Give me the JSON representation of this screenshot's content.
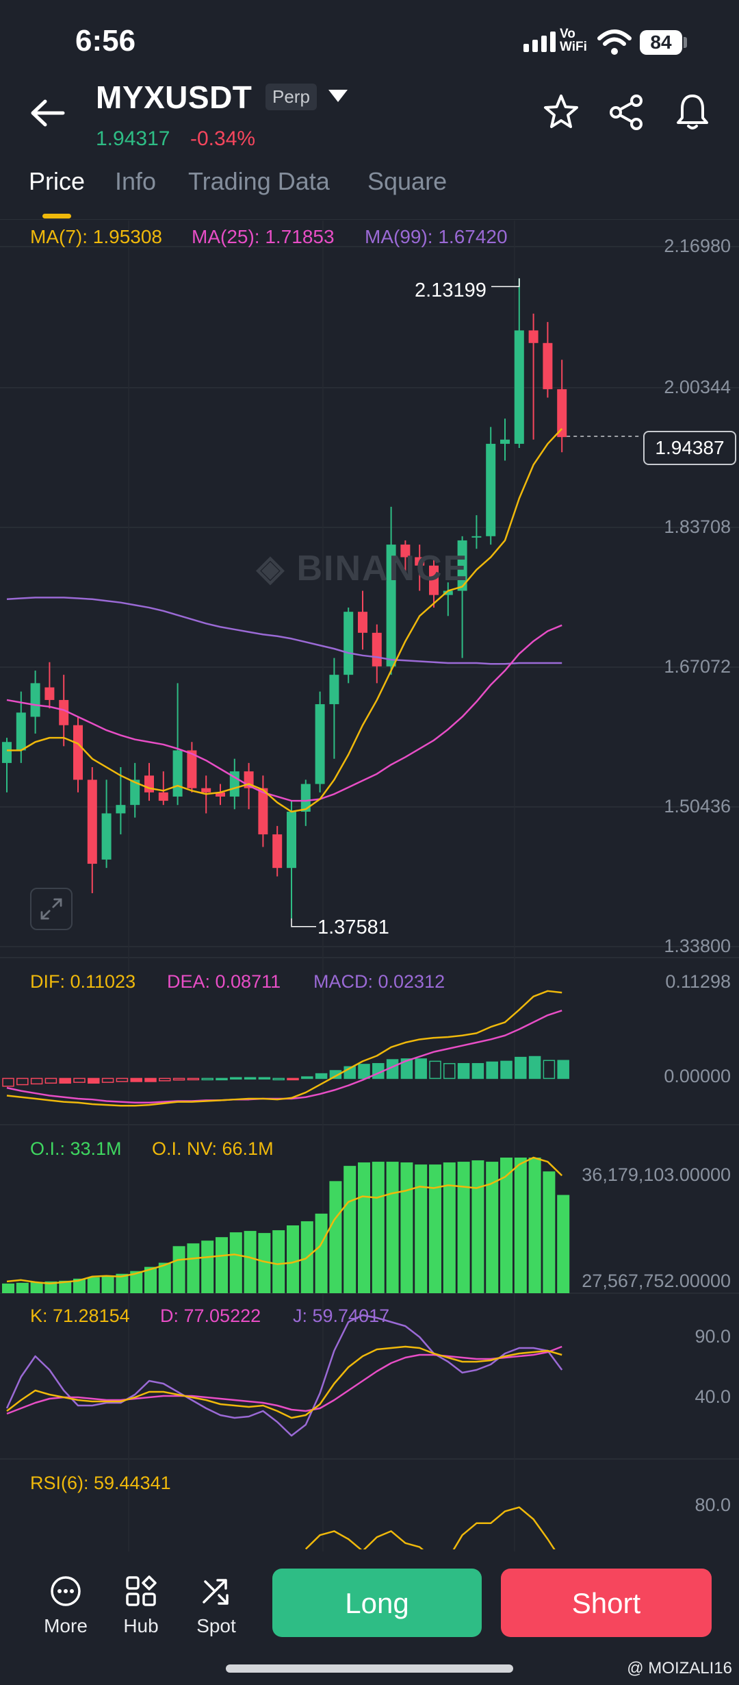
{
  "status_bar": {
    "time": "6:56",
    "network_label": "Vo\nWiFi",
    "battery": "84"
  },
  "header": {
    "symbol": "MYXUSDT",
    "contract_type": "Perp",
    "last_price": "1.94317",
    "change_pct": "-0.34%",
    "icons": [
      "back-arrow-icon",
      "dropdown-caret-icon",
      "star-icon",
      "share-icon",
      "bell-icon"
    ]
  },
  "tabs": [
    {
      "label": "Price",
      "active": true
    },
    {
      "label": "Info",
      "active": false
    },
    {
      "label": "Trading Data",
      "active": false
    },
    {
      "label": "Square",
      "active": false
    }
  ],
  "main_chart": {
    "ma_legend": [
      {
        "label": "MA(7): 1.95308",
        "color": "#f0b90b"
      },
      {
        "label": "MA(25): 1.71853",
        "color": "#e84ec6"
      },
      {
        "label": "MA(99): 1.67420",
        "color": "#9b6ad6"
      }
    ],
    "y_labels": [
      "2.16980",
      "2.00344",
      "1.83708",
      "1.67072",
      "1.50436",
      "1.33800"
    ],
    "high_label": "2.13199",
    "low_label": "1.37581",
    "current_price": "1.94387",
    "watermark": "BINANCE"
  },
  "macd": {
    "dif": "DIF: 0.11023",
    "dea": "DEA: 0.08711",
    "macd": "MACD: 0.02312",
    "y_labels": [
      "0.11298",
      "0.00000"
    ]
  },
  "open_interest": {
    "oi": "O.I.: 33.1M",
    "oi_nv": "O.I. NV: 66.1M",
    "y_labels": [
      "36,179,103.00000",
      "27,567,752.00000"
    ]
  },
  "kdj": {
    "k": "K: 71.28154",
    "d": "D: 77.05222",
    "j": "J: 59.74017",
    "y_labels": [
      "90.0",
      "40.0"
    ]
  },
  "rsi": {
    "label": "RSI(6): 59.44341",
    "y_labels": [
      "80.0"
    ]
  },
  "bottom_nav": {
    "more": "More",
    "hub": "Hub",
    "spot": "Spot",
    "long": "Long",
    "short": "Short"
  },
  "credit": "@ MOIZALI16",
  "colors": {
    "up": "#2ebd85",
    "down": "#f6465d",
    "ma7": "#f0b90b",
    "ma25": "#e84ec6",
    "ma99": "#9b6ad6",
    "oi_bar": "#3fd760",
    "background": "#1e222b"
  },
  "chart_data": {
    "type": "candlestick",
    "y_axis_range": [
      1.338,
      2.1698
    ],
    "candles": [
      {
        "o": 1.555,
        "h": 1.585,
        "l": 1.52,
        "c": 1.58
      },
      {
        "o": 1.57,
        "h": 1.64,
        "l": 1.555,
        "c": 1.615
      },
      {
        "o": 1.61,
        "h": 1.665,
        "l": 1.59,
        "c": 1.65
      },
      {
        "o": 1.645,
        "h": 1.675,
        "l": 1.62,
        "c": 1.63
      },
      {
        "o": 1.63,
        "h": 1.66,
        "l": 1.575,
        "c": 1.6
      },
      {
        "o": 1.6,
        "h": 1.61,
        "l": 1.52,
        "c": 1.535
      },
      {
        "o": 1.535,
        "h": 1.55,
        "l": 1.4,
        "c": 1.435
      },
      {
        "o": 1.44,
        "h": 1.535,
        "l": 1.43,
        "c": 1.495
      },
      {
        "o": 1.495,
        "h": 1.55,
        "l": 1.47,
        "c": 1.505
      },
      {
        "o": 1.505,
        "h": 1.555,
        "l": 1.49,
        "c": 1.535
      },
      {
        "o": 1.54,
        "h": 1.555,
        "l": 1.51,
        "c": 1.52
      },
      {
        "o": 1.52,
        "h": 1.545,
        "l": 1.505,
        "c": 1.51
      },
      {
        "o": 1.515,
        "h": 1.65,
        "l": 1.505,
        "c": 1.57
      },
      {
        "o": 1.57,
        "h": 1.58,
        "l": 1.52,
        "c": 1.525
      },
      {
        "o": 1.525,
        "h": 1.54,
        "l": 1.495,
        "c": 1.52
      },
      {
        "o": 1.52,
        "h": 1.53,
        "l": 1.505,
        "c": 1.515
      },
      {
        "o": 1.515,
        "h": 1.56,
        "l": 1.5,
        "c": 1.545
      },
      {
        "o": 1.545,
        "h": 1.555,
        "l": 1.5,
        "c": 1.525
      },
      {
        "o": 1.525,
        "h": 1.54,
        "l": 1.455,
        "c": 1.47
      },
      {
        "o": 1.47,
        "h": 1.48,
        "l": 1.42,
        "c": 1.43
      },
      {
        "o": 1.43,
        "h": 1.51,
        "l": 1.37,
        "c": 1.497
      },
      {
        "o": 1.497,
        "h": 1.535,
        "l": 1.48,
        "c": 1.53
      },
      {
        "o": 1.53,
        "h": 1.64,
        "l": 1.52,
        "c": 1.625
      },
      {
        "o": 1.625,
        "h": 1.68,
        "l": 1.56,
        "c": 1.66
      },
      {
        "o": 1.66,
        "h": 1.74,
        "l": 1.65,
        "c": 1.735
      },
      {
        "o": 1.735,
        "h": 1.76,
        "l": 1.69,
        "c": 1.71
      },
      {
        "o": 1.71,
        "h": 1.72,
        "l": 1.65,
        "c": 1.67
      },
      {
        "o": 1.67,
        "h": 1.86,
        "l": 1.66,
        "c": 1.815
      },
      {
        "o": 1.815,
        "h": 1.82,
        "l": 1.78,
        "c": 1.8
      },
      {
        "o": 1.8,
        "h": 1.815,
        "l": 1.76,
        "c": 1.79
      },
      {
        "o": 1.79,
        "h": 1.8,
        "l": 1.74,
        "c": 1.755
      },
      {
        "o": 1.755,
        "h": 1.77,
        "l": 1.73,
        "c": 1.76
      },
      {
        "o": 1.76,
        "h": 1.825,
        "l": 1.68,
        "c": 1.82
      },
      {
        "o": 1.825,
        "h": 1.85,
        "l": 1.81,
        "c": 1.825
      },
      {
        "o": 1.825,
        "h": 1.955,
        "l": 1.815,
        "c": 1.935
      },
      {
        "o": 1.935,
        "h": 1.965,
        "l": 1.915,
        "c": 1.94
      },
      {
        "o": 1.935,
        "h": 2.132,
        "l": 1.93,
        "c": 2.07
      },
      {
        "o": 2.07,
        "h": 2.09,
        "l": 1.94,
        "c": 2.055
      },
      {
        "o": 2.055,
        "h": 2.08,
        "l": 1.99,
        "c": 2.0
      },
      {
        "o": 2.0,
        "h": 2.035,
        "l": 1.925,
        "c": 1.943
      }
    ],
    "ma7": [
      1.57,
      1.57,
      1.58,
      1.585,
      1.585,
      1.578,
      1.56,
      1.55,
      1.54,
      1.532,
      1.525,
      1.522,
      1.528,
      1.522,
      1.518,
      1.52,
      1.525,
      1.53,
      1.523,
      1.508,
      1.497,
      1.5,
      1.512,
      1.535,
      1.565,
      1.6,
      1.63,
      1.665,
      1.7,
      1.73,
      1.745,
      1.76,
      1.765,
      1.785,
      1.8,
      1.82,
      1.87,
      1.91,
      1.935,
      1.953
    ],
    "ma25": [
      1.63,
      1.627,
      1.624,
      1.622,
      1.618,
      1.61,
      1.602,
      1.594,
      1.588,
      1.583,
      1.58,
      1.577,
      1.572,
      1.566,
      1.558,
      1.548,
      1.538,
      1.528,
      1.52,
      1.515,
      1.51,
      1.51,
      1.512,
      1.518,
      1.526,
      1.534,
      1.542,
      1.553,
      1.562,
      1.572,
      1.582,
      1.595,
      1.61,
      1.628,
      1.648,
      1.665,
      1.685,
      1.7,
      1.712,
      1.719
    ],
    "ma99": [
      1.75,
      1.751,
      1.752,
      1.752,
      1.752,
      1.751,
      1.75,
      1.748,
      1.746,
      1.743,
      1.74,
      1.736,
      1.731,
      1.726,
      1.721,
      1.717,
      1.714,
      1.711,
      1.708,
      1.706,
      1.703,
      1.699,
      1.695,
      1.691,
      1.686,
      1.683,
      1.681,
      1.678,
      1.677,
      1.676,
      1.675,
      1.674,
      1.674,
      1.674,
      1.673,
      1.673,
      1.674,
      1.674,
      1.674,
      1.674
    ],
    "macd": {
      "y_axis_range": [
        -0.04,
        0.125
      ],
      "hist": [
        -0.01,
        -0.008,
        -0.007,
        -0.006,
        -0.006,
        -0.005,
        -0.006,
        -0.005,
        -0.004,
        -0.004,
        -0.004,
        -0.003,
        -0.002,
        -0.001,
        0.0,
        0.0,
        0.001,
        0.001,
        0.001,
        0.0,
        -0.001,
        0.002,
        0.006,
        0.01,
        0.015,
        0.018,
        0.019,
        0.024,
        0.025,
        0.025,
        0.022,
        0.019,
        0.019,
        0.019,
        0.021,
        0.022,
        0.027,
        0.028,
        0.023,
        0.023
      ],
      "dif": [
        -0.022,
        -0.024,
        -0.026,
        -0.028,
        -0.03,
        -0.031,
        -0.033,
        -0.034,
        -0.035,
        -0.035,
        -0.034,
        -0.032,
        -0.03,
        -0.03,
        -0.029,
        -0.028,
        -0.027,
        -0.026,
        -0.026,
        -0.027,
        -0.025,
        -0.018,
        -0.008,
        0.002,
        0.012,
        0.022,
        0.029,
        0.04,
        0.046,
        0.05,
        0.052,
        0.053,
        0.055,
        0.058,
        0.066,
        0.072,
        0.088,
        0.105,
        0.112,
        0.11
      ],
      "dea": [
        -0.012,
        -0.016,
        -0.019,
        -0.022,
        -0.024,
        -0.026,
        -0.027,
        -0.029,
        -0.03,
        -0.031,
        -0.031,
        -0.03,
        -0.029,
        -0.029,
        -0.028,
        -0.028,
        -0.027,
        -0.027,
        -0.026,
        -0.026,
        -0.026,
        -0.024,
        -0.02,
        -0.015,
        -0.009,
        -0.002,
        0.006,
        0.014,
        0.022,
        0.028,
        0.034,
        0.038,
        0.042,
        0.046,
        0.05,
        0.055,
        0.063,
        0.072,
        0.081,
        0.087
      ]
    },
    "open_interest": {
      "y_axis_range": [
        27200000,
        37000000
      ],
      "oi_values": [
        27900000,
        27950000,
        28000000,
        28050000,
        28100000,
        28250000,
        28350000,
        28450000,
        28600000,
        28800000,
        29100000,
        29400000,
        30600000,
        30800000,
        31000000,
        31250000,
        31600000,
        31700000,
        31550000,
        31750000,
        32100000,
        32400000,
        32950000,
        35300000,
        36400000,
        36650000,
        36700000,
        36700000,
        36650000,
        36500000,
        36500000,
        36650000,
        36700000,
        36800000,
        36700000,
        37000000,
        37000000,
        37000000,
        36000000,
        34300000
      ],
      "oi_nv_line": [
        28050000,
        28150000,
        28000000,
        27900000,
        28000000,
        28100000,
        28400000,
        28450000,
        28400000,
        28600000,
        28900000,
        29200000,
        29600000,
        29700000,
        29800000,
        29900000,
        30000000,
        29800000,
        29500000,
        29300000,
        29400000,
        29700000,
        30600000,
        32500000,
        33800000,
        34200000,
        34100000,
        34400000,
        34600000,
        34900000,
        34800000,
        35000000,
        34900000,
        34800000,
        35100000,
        35600000,
        36500000,
        37000000,
        36700000,
        35700000
      ]
    },
    "kdj": {
      "y_axis_range": [
        -5,
        105
      ],
      "k": [
        30,
        38,
        45,
        42,
        40,
        38,
        37,
        37,
        37,
        40,
        44,
        44,
        42,
        40,
        38,
        35,
        34,
        33,
        34,
        30,
        25,
        27,
        35,
        50,
        62,
        70,
        75,
        76,
        77,
        76,
        72,
        69,
        66,
        66,
        67,
        70,
        72,
        73,
        74,
        71
      ],
      "d": [
        28,
        32,
        36,
        39,
        40,
        40,
        39,
        38,
        38,
        39,
        40,
        41,
        41,
        41,
        40,
        39,
        38,
        37,
        36,
        34,
        31,
        30,
        32,
        38,
        45,
        52,
        59,
        65,
        69,
        71,
        71,
        70,
        69,
        68,
        68,
        69,
        70,
        71,
        73,
        77
      ],
      "j": [
        32,
        55,
        70,
        60,
        45,
        34,
        34,
        36,
        36,
        42,
        52,
        50,
        44,
        38,
        32,
        27,
        25,
        26,
        30,
        22,
        12,
        20,
        43,
        74,
        95,
        100,
        98,
        95,
        92,
        84,
        72,
        66,
        58,
        60,
        64,
        72,
        76,
        76,
        74,
        60
      ]
    },
    "rsi": {
      "y_axis_range": [
        0,
        100
      ],
      "rsi6": [
        null,
        null,
        null,
        null,
        null,
        null,
        null,
        null,
        null,
        null,
        null,
        null,
        null,
        null,
        null,
        null,
        null,
        null,
        null,
        null,
        null,
        65,
        72,
        74,
        70,
        64,
        71,
        74,
        68,
        66,
        60,
        60,
        72,
        78,
        78,
        84,
        86,
        80,
        70,
        59
      ]
    }
  }
}
